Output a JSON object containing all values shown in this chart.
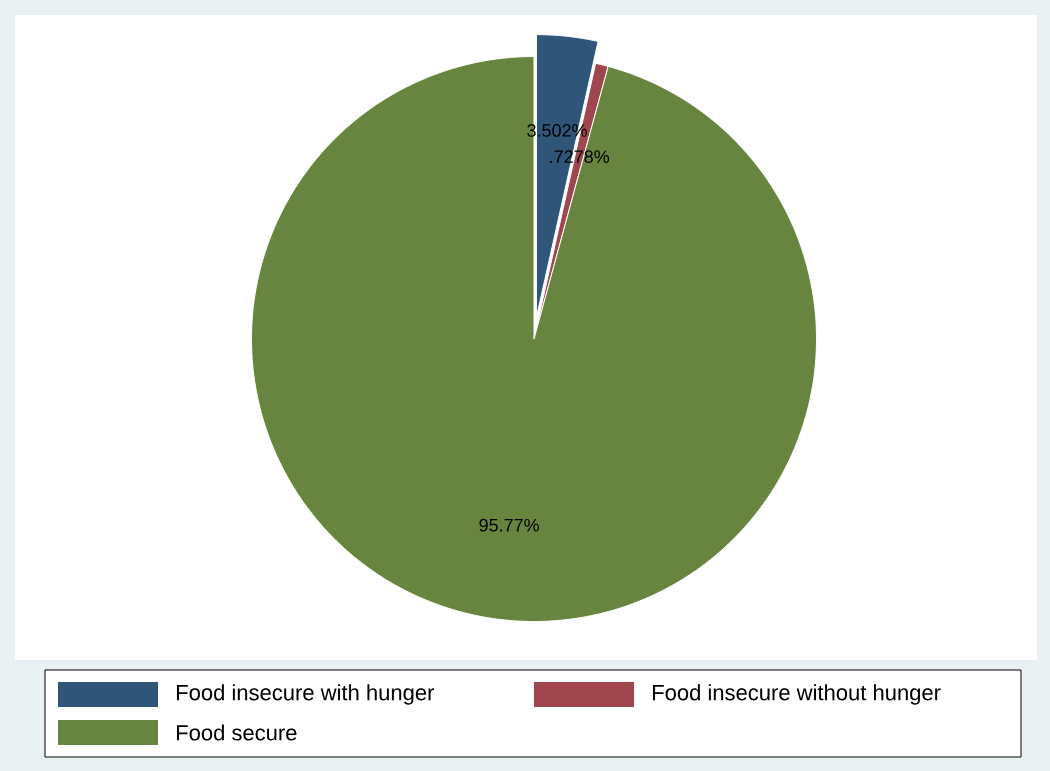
{
  "chart_data": {
    "type": "pie",
    "categories": [
      "Food insecure with hunger",
      "Food insecure without hunger",
      "Food secure"
    ],
    "values": [
      3.502,
      0.7278,
      95.77
    ],
    "colors": [
      "#2f5678",
      "#a0464e",
      "#68853f"
    ],
    "value_labels": [
      "3.502%",
      ".7278%",
      "95.77%"
    ],
    "legend": "bottom"
  }
}
